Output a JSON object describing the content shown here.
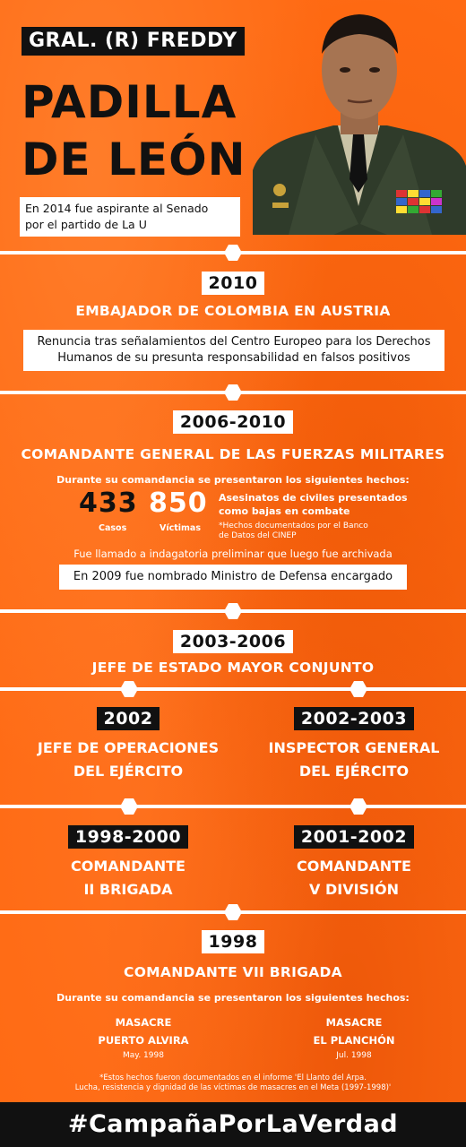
{
  "header": {
    "rank_name": "GRAL. (R) FREDDY",
    "surname_line1": "PADILLA",
    "surname_line2": "DE LEÓN",
    "intro_line1": "En 2014 fue aspirante al Senado",
    "intro_line2": "por el partido de La U"
  },
  "section_2010": {
    "year": "2010",
    "role": "EMBAJADOR DE COLOMBIA EN AUSTRIA",
    "note_line1": "Renuncia tras señalamientos del Centro Europeo para los Derechos",
    "note_line2": "Humanos de su presunta responsabilidad en falsos positivos"
  },
  "section_2006": {
    "year": "2006-2010",
    "role": "COMANDANTE GENERAL DE LAS FUERZAS MILITARES",
    "intro": "Durante su comandancia se presentaron los siguientes hechos:",
    "cases_value": "433",
    "cases_label": "Casos",
    "victims_value": "850",
    "victims_label": "Víctimas",
    "desc_line1": "Asesinatos de civiles presentados",
    "desc_line2": "como bajas en combate",
    "source_line1": "*Hechos documentados por el Banco",
    "source_line2": "de Datos del CINEP",
    "indagatoria": "Fue llamado a indagatoria preliminar que luego fue archivada",
    "minister": "En 2009 fue nombrado Ministro de Defensa encargado"
  },
  "section_2003": {
    "year": "2003-2006",
    "role": "JEFE DE ESTADO MAYOR CONJUNTO"
  },
  "section_2002_left": {
    "year": "2002",
    "role_line1": "JEFE DE OPERACIONES",
    "role_line2": "DEL EJÉRCITO"
  },
  "section_2002_right": {
    "year": "2002-2003",
    "role_line1": "INSPECTOR GENERAL",
    "role_line2": "DEL EJÉRCITO"
  },
  "section_1998_left": {
    "year": "1998-2000",
    "role_line1": "COMANDANTE",
    "role_line2": "II BRIGADA"
  },
  "section_2001_right": {
    "year": "2001-2002",
    "role_line1": "COMANDANTE",
    "role_line2": "V DIVISIÓN"
  },
  "section_1998": {
    "year": "1998",
    "role": "COMANDANTE VII BRIGADA",
    "intro": "Durante su comandancia se presentaron los siguientes hechos:",
    "massacre1_line1": "MASACRE",
    "massacre1_line2": "PUERTO ALVIRA",
    "massacre1_date": "May. 1998",
    "massacre2_line1": "MASACRE",
    "massacre2_line2": "EL PLANCHÓN",
    "massacre2_date": "Jul. 1998",
    "source_line1": "*Estos hechos fueron documentados en el informe 'El Llanto del Arpa.",
    "source_line2": "Lucha, resistencia y dignidad de las víctimas de masacres en el Meta (1997-1998)'"
  },
  "footer": {
    "hashtag": "#CampañaPorLaVerdad"
  }
}
